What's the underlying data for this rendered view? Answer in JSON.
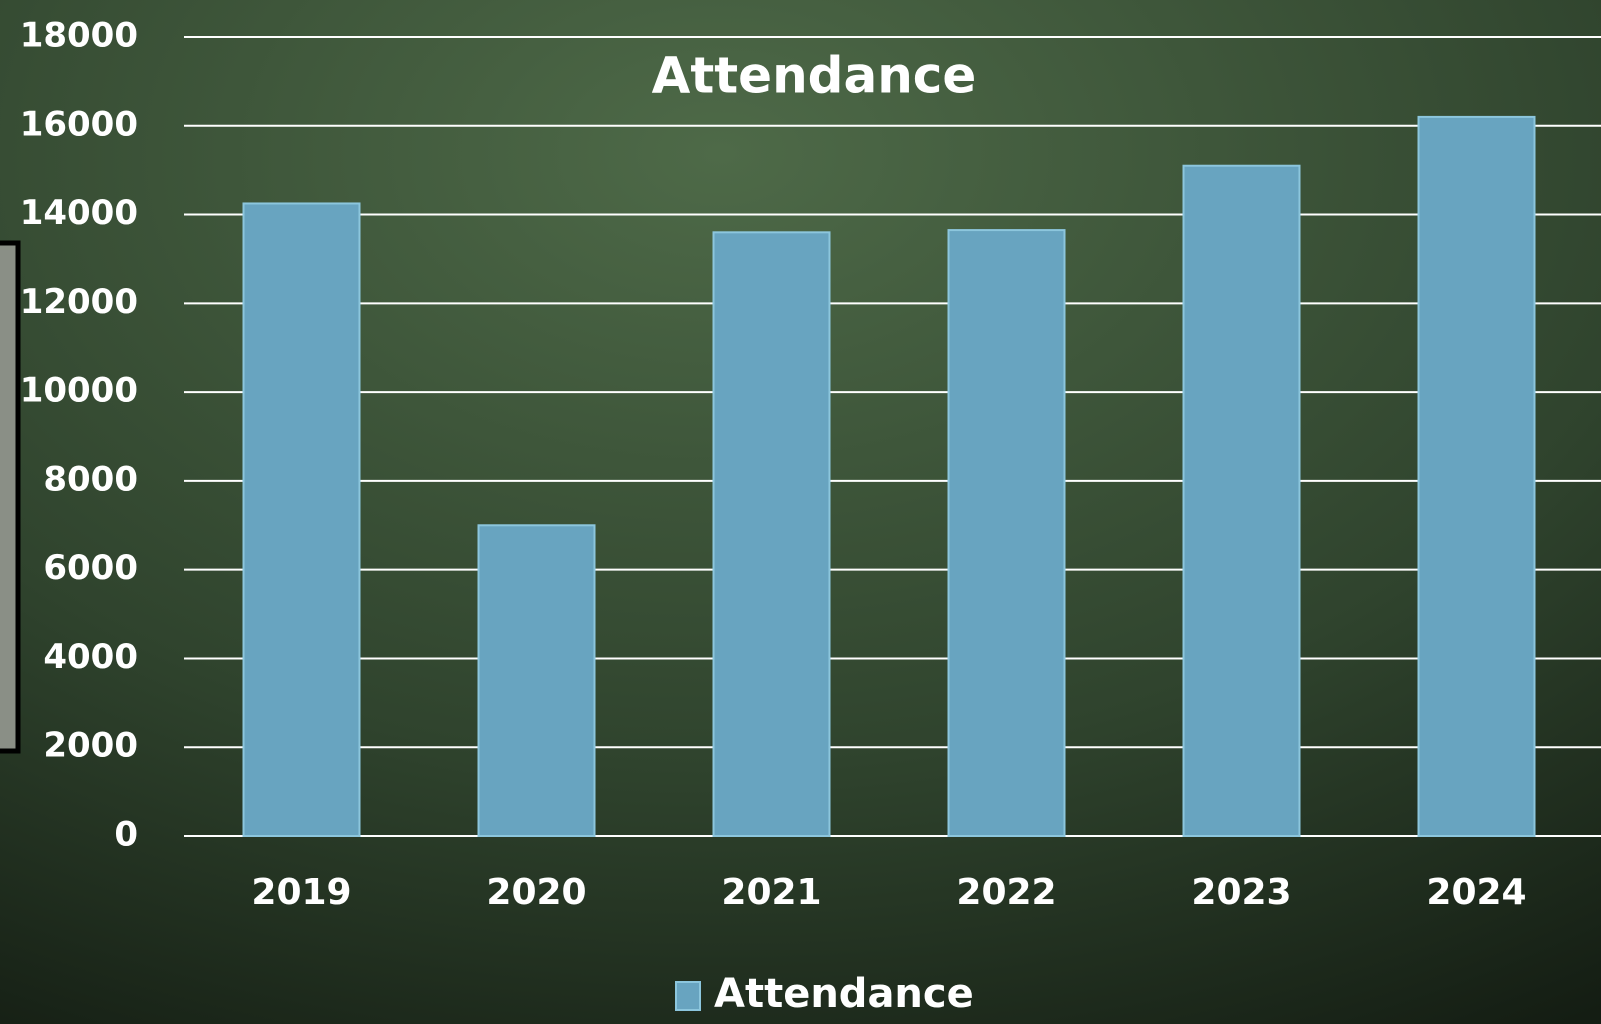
{
  "chart_data": {
    "type": "bar",
    "title": "Attendance",
    "categories": [
      "2019",
      "2020",
      "2021",
      "2022",
      "2023",
      "2024"
    ],
    "series": [
      {
        "name": "Attendance",
        "color": "#68a4c0",
        "values": [
          14250,
          7000,
          13600,
          13650,
          15100,
          16200
        ]
      }
    ],
    "ylim": [
      0,
      18000
    ],
    "yticks": [
      0,
      2000,
      4000,
      6000,
      8000,
      10000,
      12000,
      14000,
      16000,
      18000
    ],
    "grid": true,
    "legend": "bottom"
  }
}
